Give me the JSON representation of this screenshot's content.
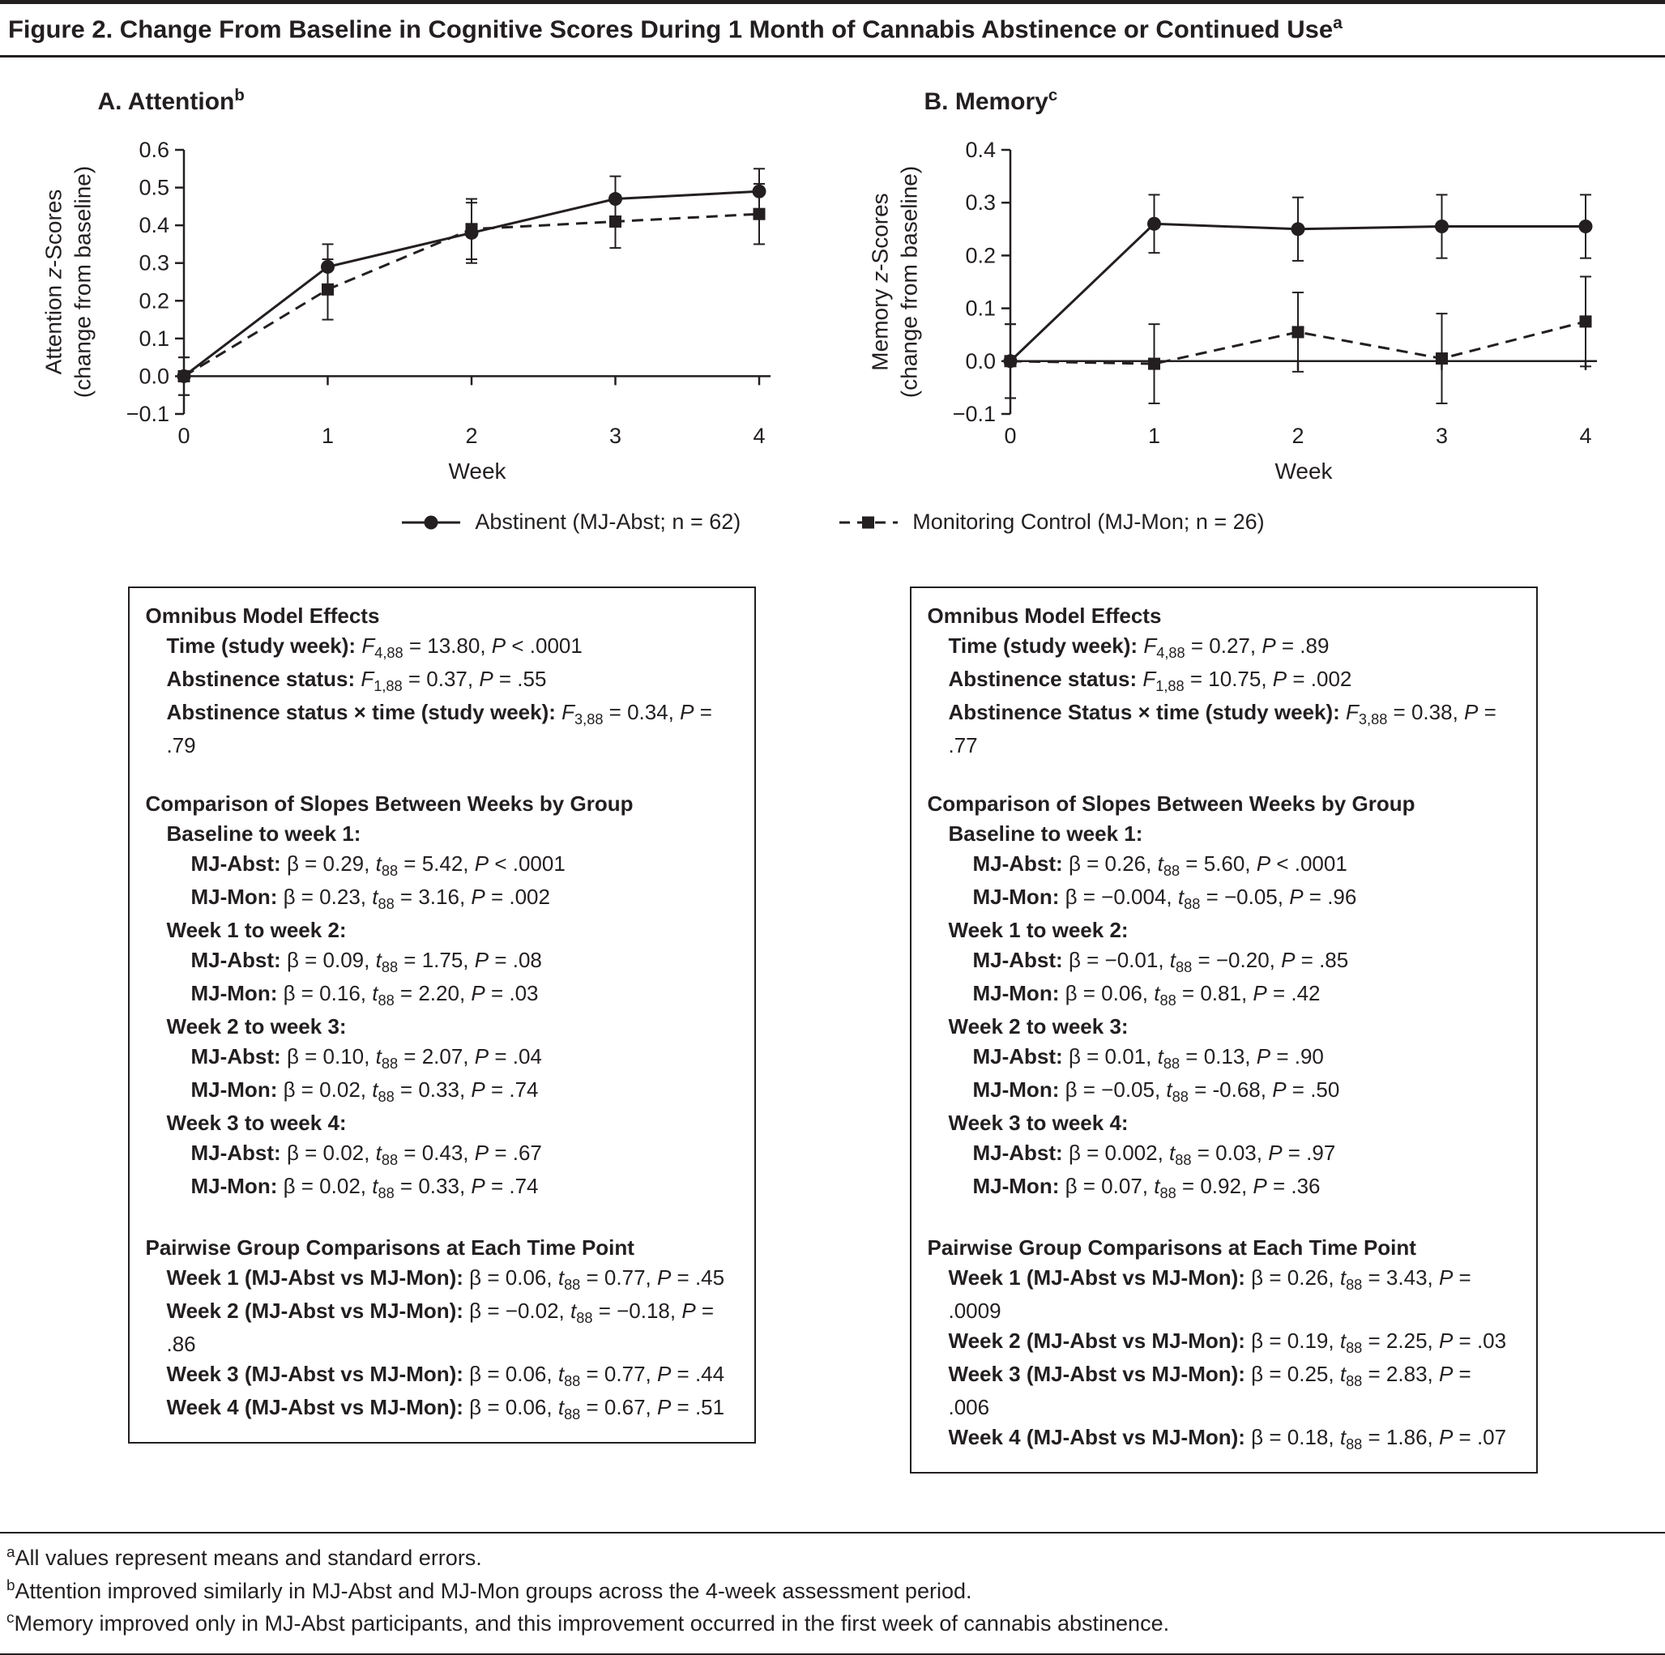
{
  "figure": {
    "title": "Figure 2. Change From Baseline in Cognitive Scores During 1 Month of Cannabis Abstinence or Continued Use^a^"
  },
  "panels": [
    {
      "title": "A. Attention^b^"
    },
    {
      "title": "B. Memory^c^"
    }
  ],
  "legend": {
    "items": [
      {
        "label": "Abstinent (MJ-Abst; n = 62)",
        "marker": "circle",
        "line_style": "solid"
      },
      {
        "label": "Monitoring Control (MJ-Mon; n = 26)",
        "marker": "square",
        "line_style": "dashed"
      }
    ]
  },
  "chart_data": [
    {
      "type": "line",
      "title": "A. Attention",
      "xlabel": "Week",
      "ylabel": "Attention *z*-Scores",
      "ylabel2": "(change from baseline)",
      "xlim": [
        0,
        4
      ],
      "ylim": [
        -0.1,
        0.6
      ],
      "xticks": [
        0,
        1,
        2,
        3,
        4
      ],
      "yticks": [
        {
          "v": 0.6,
          "label": "0.6"
        },
        {
          "v": 0.5,
          "label": "0.5"
        },
        {
          "v": 0.4,
          "label": "0.4"
        },
        {
          "v": 0.3,
          "label": "0.3"
        },
        {
          "v": 0.2,
          "label": "0.2"
        },
        {
          "v": 0.1,
          "label": "0.1"
        },
        {
          "v": 0.0,
          "label": "0.0"
        },
        {
          "v": -0.1,
          "label": "−0.1"
        }
      ],
      "x": [
        0,
        1,
        2,
        3,
        4
      ],
      "grid": false,
      "legend_position": "below",
      "series": [
        {
          "name": "Abstinent (MJ-Abst; n = 62)",
          "marker": "circle",
          "line_style": "solid",
          "values": [
            0.0,
            0.29,
            0.38,
            0.47,
            0.49
          ],
          "se": [
            0.05,
            0.06,
            0.08,
            0.06,
            0.06
          ]
        },
        {
          "name": "Monitoring Control (MJ-Mon; n = 26)",
          "marker": "square",
          "line_style": "dashed",
          "values": [
            0.0,
            0.23,
            0.39,
            0.41,
            0.43
          ],
          "se": [
            0.05,
            0.08,
            0.08,
            0.07,
            0.08
          ]
        }
      ]
    },
    {
      "type": "line",
      "title": "B. Memory",
      "xlabel": "Week",
      "ylabel": "Memory *z*-Scores",
      "ylabel2": "(change from baseline)",
      "xlim": [
        0,
        4
      ],
      "ylim": [
        -0.1,
        0.4
      ],
      "xticks": [
        0,
        1,
        2,
        3,
        4
      ],
      "yticks": [
        {
          "v": 0.4,
          "label": "0.4"
        },
        {
          "v": 0.3,
          "label": "0.3"
        },
        {
          "v": 0.2,
          "label": "0.2"
        },
        {
          "v": 0.1,
          "label": "0.1"
        },
        {
          "v": 0.0,
          "label": "0.0"
        },
        {
          "v": -0.1,
          "label": "−0.1"
        }
      ],
      "x": [
        0,
        1,
        2,
        3,
        4
      ],
      "grid": false,
      "legend_position": "below",
      "series": [
        {
          "name": "Abstinent (MJ-Abst; n = 62)",
          "marker": "circle",
          "line_style": "solid",
          "values": [
            0.0,
            0.26,
            0.25,
            0.255,
            0.255
          ],
          "se": [
            0.07,
            0.055,
            0.06,
            0.06,
            0.06
          ]
        },
        {
          "name": "Monitoring Control (MJ-Mon; n = 26)",
          "marker": "square",
          "line_style": "dashed",
          "values": [
            0.0,
            -0.005,
            0.055,
            0.005,
            0.075
          ],
          "se": [
            0.07,
            0.075,
            0.075,
            0.085,
            0.085
          ]
        }
      ]
    }
  ],
  "stats_boxes": [
    {
      "lines": [
        {
          "indent": 0,
          "label": "Omnibus Model Effects",
          "value": ""
        },
        {
          "indent": 1,
          "label": "Time (study week):",
          "value": " *F*~4,88~ = 13.80, *P* < .0001"
        },
        {
          "indent": 1,
          "label": "Abstinence status:",
          "value": " *F*~1,88~ = 0.37, *P* = .55"
        },
        {
          "indent": 1,
          "label": "Abstinence status × time (study week):",
          "value": " *F*~3,88~ = 0.34, *P* = .79"
        },
        {
          "indent": 0,
          "gap": true,
          "label": "Comparison of Slopes Between Weeks by Group",
          "value": ""
        },
        {
          "indent": 1,
          "label": "Baseline to week 1:",
          "value": ""
        },
        {
          "indent": 2,
          "label": "MJ-Abst:",
          "value": " β = 0.29, *t*~88~ = 5.42, *P* < .0001"
        },
        {
          "indent": 2,
          "label": "MJ-Mon:",
          "value": " β = 0.23, *t*~88~ = 3.16, *P* = .002"
        },
        {
          "indent": 1,
          "label": "Week 1 to week 2:",
          "value": ""
        },
        {
          "indent": 2,
          "label": "MJ-Abst:",
          "value": " β = 0.09, *t*~88~ = 1.75, *P* = .08"
        },
        {
          "indent": 2,
          "label": "MJ-Mon:",
          "value": " β = 0.16, *t*~88~ = 2.20, *P* = .03"
        },
        {
          "indent": 1,
          "label": "Week 2 to week 3:",
          "value": ""
        },
        {
          "indent": 2,
          "label": "MJ-Abst:",
          "value": " β = 0.10, *t*~88~ = 2.07, *P* = .04"
        },
        {
          "indent": 2,
          "label": "MJ-Mon:",
          "value": " β = 0.02, *t*~88~ = 0.33, *P* = .74"
        },
        {
          "indent": 1,
          "label": "Week 3 to week 4:",
          "value": ""
        },
        {
          "indent": 2,
          "label": "MJ-Abst:",
          "value": " β = 0.02, *t*~88~ = 0.43, *P* = .67"
        },
        {
          "indent": 2,
          "label": "MJ-Mon:",
          "value": " β = 0.02, *t*~88~ = 0.33, *P* = .74"
        },
        {
          "indent": 0,
          "gap": true,
          "label": "Pairwise Group Comparisons at Each Time Point",
          "value": ""
        },
        {
          "indent": 1,
          "label": "Week 1 (MJ-Abst vs MJ-Mon):",
          "value": " β = 0.06, *t*~88~ = 0.77, *P* = .45"
        },
        {
          "indent": 1,
          "label": "Week 2 (MJ-Abst vs MJ-Mon):",
          "value": " β = −0.02, *t*~88~ = −0.18, *P* = .86"
        },
        {
          "indent": 1,
          "label": "Week 3 (MJ-Abst vs MJ-Mon):",
          "value": " β = 0.06, *t*~88~ = 0.77, *P* = .44"
        },
        {
          "indent": 1,
          "label": "Week 4 (MJ-Abst vs MJ-Mon):",
          "value": " β = 0.06, *t*~88~ = 0.67, *P* = .51"
        }
      ]
    },
    {
      "lines": [
        {
          "indent": 0,
          "label": "Omnibus Model Effects",
          "value": ""
        },
        {
          "indent": 1,
          "label": "Time (study week):",
          "value": " *F*~4,88~ = 0.27, *P* = .89"
        },
        {
          "indent": 1,
          "label": "Abstinence status:",
          "value": " *F*~1,88~ = 10.75, *P* = .002"
        },
        {
          "indent": 1,
          "label": "Abstinence Status × time (study week):",
          "value": " *F*~3,88~ = 0.38, *P* = .77"
        },
        {
          "indent": 0,
          "gap": true,
          "label": "Comparison of Slopes Between Weeks by Group",
          "value": ""
        },
        {
          "indent": 1,
          "label": "Baseline to week 1:",
          "value": ""
        },
        {
          "indent": 2,
          "label": "MJ-Abst:",
          "value": " β = 0.26, *t*~88~ = 5.60, *P* < .0001"
        },
        {
          "indent": 2,
          "label": "MJ-Mon:",
          "value": " β = −0.004, *t*~88~ = −0.05, *P* = .96"
        },
        {
          "indent": 1,
          "label": "Week 1 to week 2:",
          "value": ""
        },
        {
          "indent": 2,
          "label": "MJ-Abst:",
          "value": " β = −0.01, *t*~88~ = −0.20, *P* = .85"
        },
        {
          "indent": 2,
          "label": "MJ-Mon:",
          "value": " β = 0.06, *t*~88~ = 0.81, *P* = .42"
        },
        {
          "indent": 1,
          "label": "Week 2 to week 3:",
          "value": ""
        },
        {
          "indent": 2,
          "label": "MJ-Abst:",
          "value": " β = 0.01, *t*~88~ = 0.13, *P* = .90"
        },
        {
          "indent": 2,
          "label": "MJ-Mon:",
          "value": " β = −0.05, *t*~88~ = -0.68, *P* = .50"
        },
        {
          "indent": 1,
          "label": "Week 3 to week 4:",
          "value": ""
        },
        {
          "indent": 2,
          "label": "MJ-Abst:",
          "value": " β = 0.002, *t*~88~ = 0.03, *P* = .97"
        },
        {
          "indent": 2,
          "label": "MJ-Mon:",
          "value": " β = 0.07, *t*~88~ = 0.92, *P* = .36"
        },
        {
          "indent": 0,
          "gap": true,
          "label": "Pairwise Group Comparisons at Each Time Point",
          "value": ""
        },
        {
          "indent": 1,
          "label": "Week 1 (MJ-Abst vs MJ-Mon):",
          "value": " β = 0.26, *t*~88~ = 3.43, *P* = .0009"
        },
        {
          "indent": 1,
          "label": "Week 2 (MJ-Abst vs MJ-Mon):",
          "value": " β = 0.19, *t*~88~ = 2.25, *P* = .03"
        },
        {
          "indent": 1,
          "label": "Week 3 (MJ-Abst vs MJ-Mon):",
          "value": " β = 0.25, *t*~88~ = 2.83, *P* = .006"
        },
        {
          "indent": 1,
          "label": "Week 4 (MJ-Abst vs MJ-Mon):",
          "value": " β = 0.18, *t*~88~ = 1.86, *P* = .07"
        }
      ]
    }
  ],
  "footnotes": [
    "^a^All values represent means and standard errors.",
    "^b^Attention improved similarly in MJ-Abst and MJ-Mon groups across the 4-week assessment period.",
    "^c^Memory improved only in MJ-Abst participants, and this improvement occurred in the first week of cannabis abstinence."
  ]
}
